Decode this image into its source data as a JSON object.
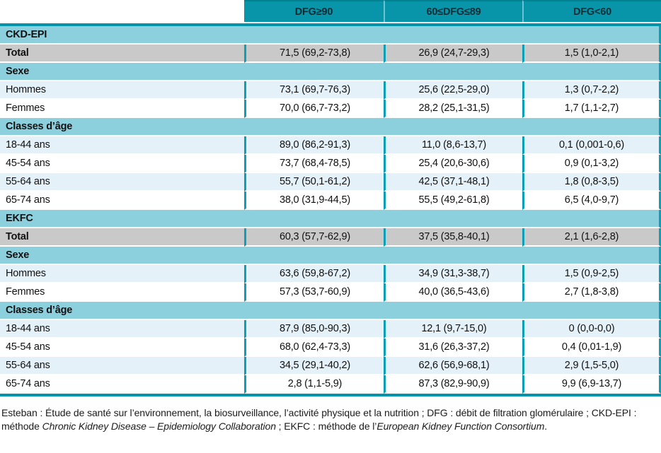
{
  "chart_data": {
    "type": "table",
    "columns": [
      "",
      "DFG≥90",
      "60≤DFG≤89",
      "DFG<60"
    ],
    "rows": [
      {
        "type": "section",
        "label": "CKD-EPI"
      },
      {
        "type": "total",
        "label": "Total",
        "values": [
          "71,5 (69,2-73,8)",
          "26,9 (24,7-29,3)",
          "1,5 (1,0-2,1)"
        ]
      },
      {
        "type": "section",
        "label": "Sexe"
      },
      {
        "type": "data",
        "shade": true,
        "label": "Hommes",
        "values": [
          "73,1 (69,7-76,3)",
          "25,6 (22,5-29,0)",
          "1,3 (0,7-2,2)"
        ]
      },
      {
        "type": "data",
        "shade": false,
        "label": "Femmes",
        "values": [
          "70,0 (66,7-73,2)",
          "28,2 (25,1-31,5)",
          "1,7 (1,1-2,7)"
        ]
      },
      {
        "type": "section",
        "label": "Classes d’âge"
      },
      {
        "type": "data",
        "shade": true,
        "label": "18-44 ans",
        "values": [
          "89,0 (86,2-91,3)",
          "11,0 (8,6-13,7)",
          "0,1 (0,001-0,6)"
        ]
      },
      {
        "type": "data",
        "shade": false,
        "label": "45-54 ans",
        "values": [
          "73,7 (68,4-78,5)",
          "25,4 (20,6-30,6)",
          "0,9 (0,1-3,2)"
        ]
      },
      {
        "type": "data",
        "shade": true,
        "label": "55-64 ans",
        "values": [
          "55,7 (50,1-61,2)",
          "42,5 (37,1-48,1)",
          "1,8 (0,8-3,5)"
        ]
      },
      {
        "type": "data",
        "shade": false,
        "label": "65-74 ans",
        "values": [
          "38,0 (31,9-44,5)",
          "55,5 (49,2-61,8)",
          "6,5 (4,0-9,7)"
        ]
      },
      {
        "type": "section",
        "label": "EKFC"
      },
      {
        "type": "total",
        "label": "Total",
        "values": [
          "60,3 (57,7-62,9)",
          "37,5 (35,8-40,1)",
          "2,1 (1,6-2,8)"
        ]
      },
      {
        "type": "section",
        "label": "Sexe"
      },
      {
        "type": "data",
        "shade": true,
        "label": "Hommes",
        "values": [
          "63,6 (59,8-67,2)",
          "34,9 (31,3-38,7)",
          "1,5 (0,9-2,5)"
        ]
      },
      {
        "type": "data",
        "shade": false,
        "label": "Femmes",
        "values": [
          "57,3 (53,7-60,9)",
          "40,0 (36,5-43,6)",
          "2,7 (1,8-3,8)"
        ]
      },
      {
        "type": "section",
        "label": "Classes d’âge"
      },
      {
        "type": "data",
        "shade": true,
        "label": "18-44 ans",
        "values": [
          "87,9 (85,0-90,3)",
          "12,1 (9,7-15,0)",
          "0 (0,0-0,0)"
        ]
      },
      {
        "type": "data",
        "shade": false,
        "label": "45-54 ans",
        "values": [
          "68,0 (62,4-73,3)",
          "31,6 (26,3-37,2)",
          "0,4 (0,01-1,9)"
        ]
      },
      {
        "type": "data",
        "shade": true,
        "label": "55-64 ans",
        "values": [
          "34,5 (29,1-40,2)",
          "62,6 (56,9-68,1)",
          "2,9 (1,5-5,0)"
        ]
      },
      {
        "type": "data",
        "shade": false,
        "label": "65-74 ans",
        "values": [
          "2,8 (1,1-5,9)",
          "87,3 (82,9-90,9)",
          "9,9 (6,9-13,7)"
        ]
      }
    ]
  },
  "footnote": {
    "parts": [
      {
        "italic": false,
        "text": "Esteban : Étude de santé sur l’environnement, la biosurveillance, l’activité physique et la nutrition ; DFG : débit de filtration glomérulaire ; CKD-EPI : méthode "
      },
      {
        "italic": true,
        "text": "Chronic Kidney Disease – Epidemiology Collaboration"
      },
      {
        "italic": false,
        "text": " ; EKFC : méthode de l’"
      },
      {
        "italic": true,
        "text": "European Kidney Function Consortium"
      },
      {
        "italic": false,
        "text": "."
      }
    ]
  },
  "colors": {
    "header_teal": "#0895aa",
    "rule_teal": "#0193a9",
    "divider_teal": "#0d9fb5",
    "section_blue": "#8ccfdd",
    "total_gray": "#c9c9c9",
    "pale_blue": "#e5f1f8",
    "header_separator": "#6cc2d0",
    "text": "#111111"
  }
}
